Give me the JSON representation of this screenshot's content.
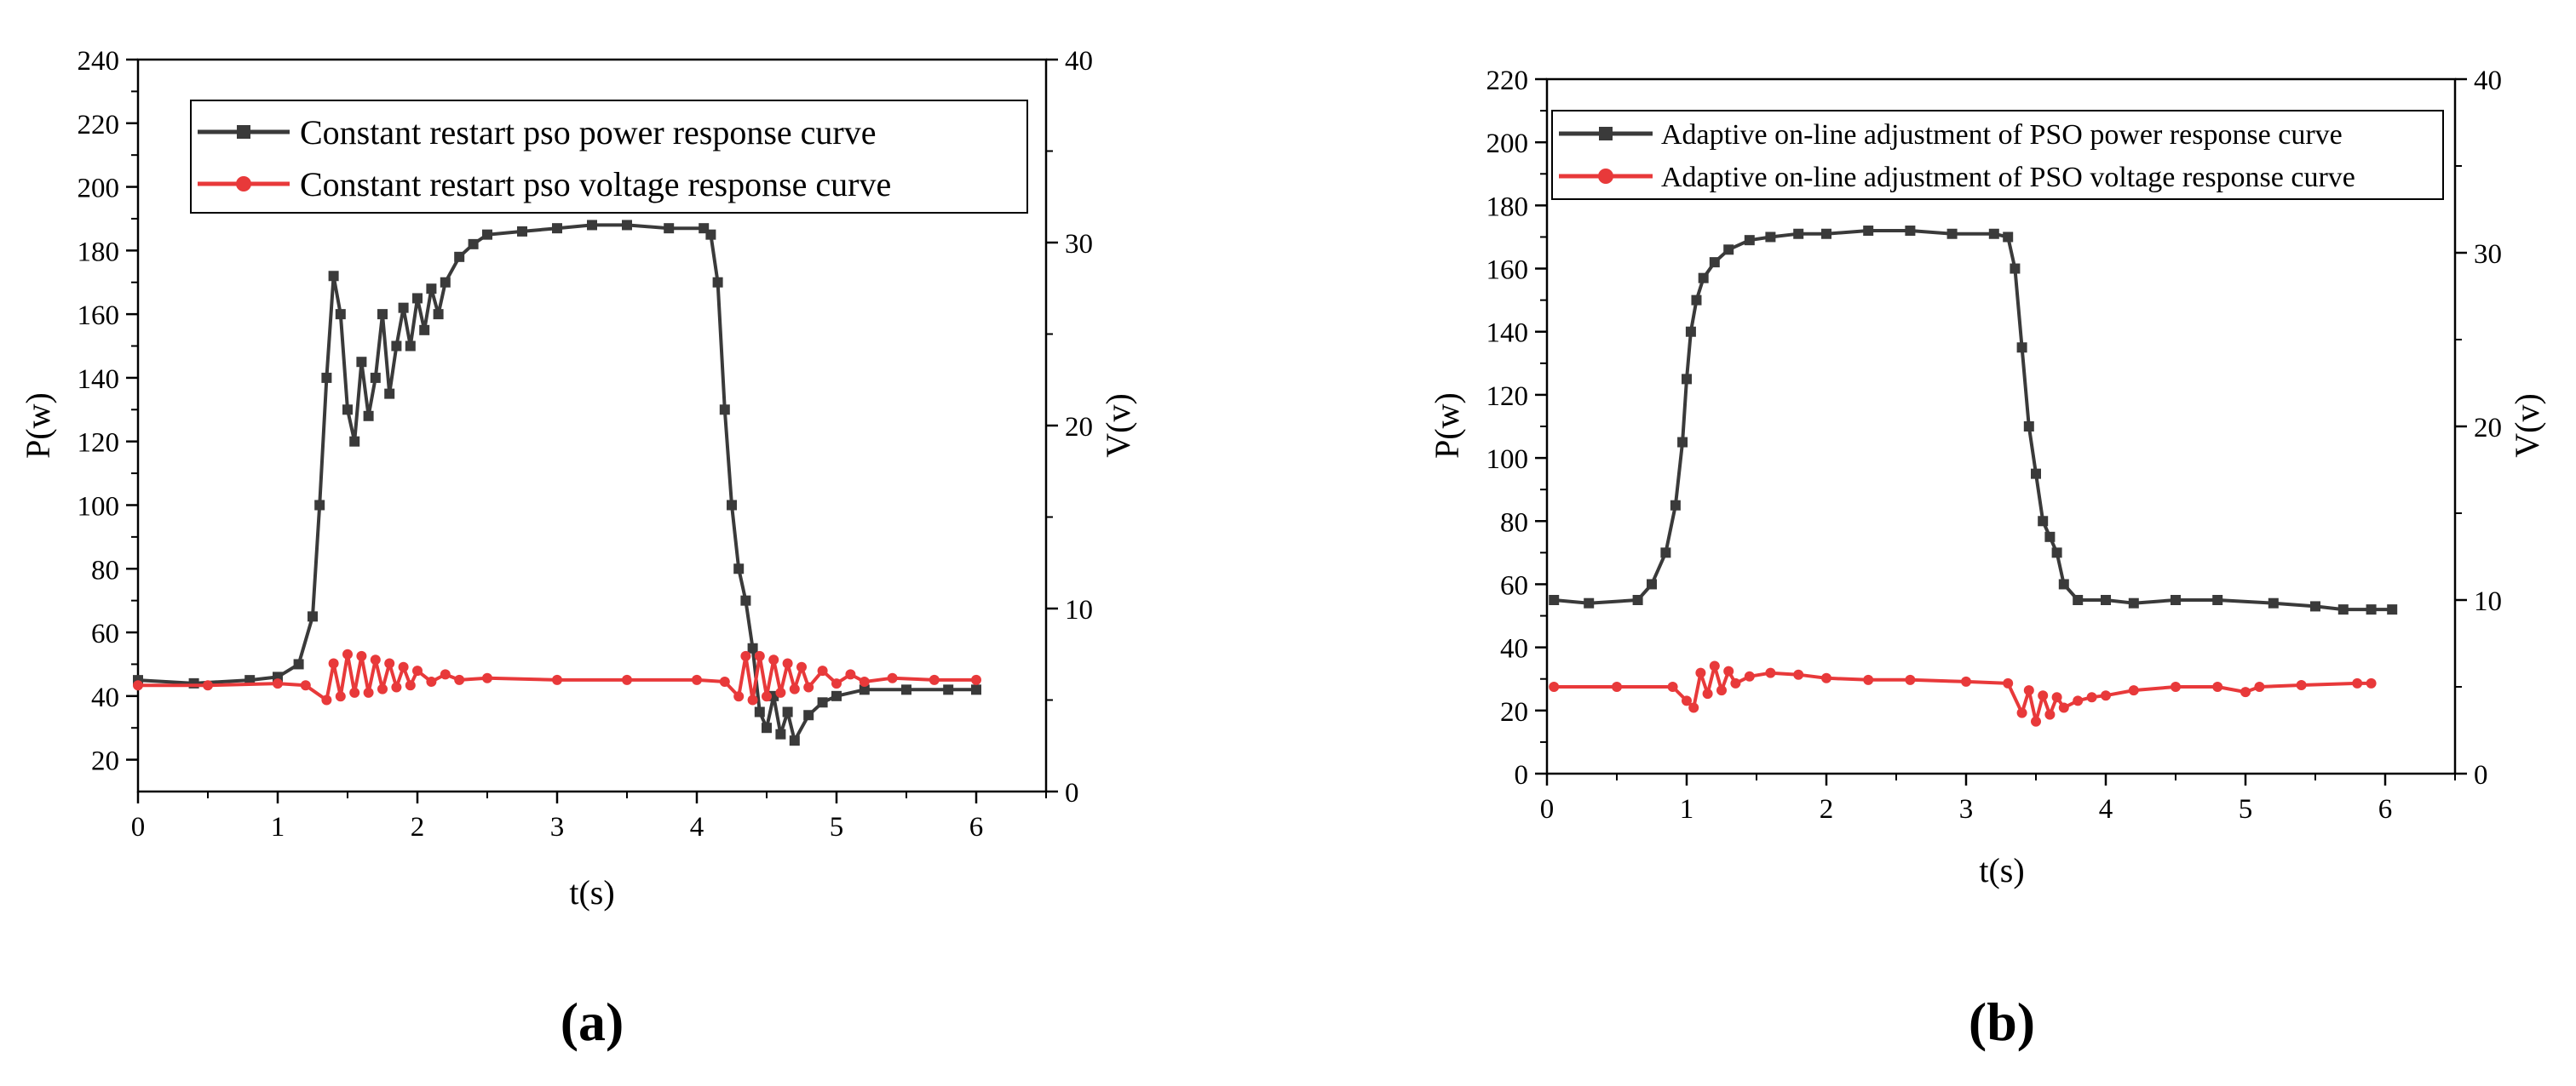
{
  "colors": {
    "power": "#3a3a3a",
    "voltage": "#e8393a"
  },
  "chart_data": [
    {
      "type": "line",
      "panel_label": "a",
      "xlabel": "t(s)",
      "ylabel": "P(w)",
      "y2label": "V(v)",
      "xlim": [
        0,
        6.5
      ],
      "ylim": [
        10,
        240
      ],
      "y2lim": [
        0,
        40
      ],
      "x_ticks": [
        "0",
        "1",
        "2",
        "3",
        "4",
        "5",
        "6"
      ],
      "y_ticks": [
        "20",
        "40",
        "60",
        "80",
        "100",
        "120",
        "140",
        "160",
        "180",
        "200",
        "220",
        "240"
      ],
      "y2_ticks": [
        "0",
        "10",
        "20",
        "30",
        "40"
      ],
      "legend": [
        "Constant restart pso power response curve",
        "Constant restart pso voltage response curve"
      ],
      "series": [
        {
          "name": "Constant restart pso power response curve",
          "axis": "left",
          "points": [
            [
              0,
              45
            ],
            [
              0.4,
              44
            ],
            [
              0.8,
              45
            ],
            [
              1.0,
              46
            ],
            [
              1.15,
              50
            ],
            [
              1.25,
              65
            ],
            [
              1.3,
              100
            ],
            [
              1.35,
              140
            ],
            [
              1.4,
              172
            ],
            [
              1.45,
              160
            ],
            [
              1.5,
              130
            ],
            [
              1.55,
              120
            ],
            [
              1.6,
              145
            ],
            [
              1.65,
              128
            ],
            [
              1.7,
              140
            ],
            [
              1.75,
              160
            ],
            [
              1.8,
              135
            ],
            [
              1.85,
              150
            ],
            [
              1.9,
              162
            ],
            [
              1.95,
              150
            ],
            [
              2.0,
              165
            ],
            [
              2.05,
              155
            ],
            [
              2.1,
              168
            ],
            [
              2.15,
              160
            ],
            [
              2.2,
              170
            ],
            [
              2.3,
              178
            ],
            [
              2.4,
              182
            ],
            [
              2.5,
              185
            ],
            [
              2.75,
              186
            ],
            [
              3.0,
              187
            ],
            [
              3.25,
              188
            ],
            [
              3.5,
              188
            ],
            [
              3.8,
              187
            ],
            [
              4.05,
              187
            ],
            [
              4.1,
              185
            ],
            [
              4.15,
              170
            ],
            [
              4.2,
              130
            ],
            [
              4.25,
              100
            ],
            [
              4.3,
              80
            ],
            [
              4.35,
              70
            ],
            [
              4.4,
              55
            ],
            [
              4.45,
              35
            ],
            [
              4.5,
              30
            ],
            [
              4.55,
              40
            ],
            [
              4.6,
              28
            ],
            [
              4.65,
              35
            ],
            [
              4.7,
              26
            ],
            [
              4.8,
              34
            ],
            [
              4.9,
              38
            ],
            [
              5.0,
              40
            ],
            [
              5.2,
              42
            ],
            [
              5.5,
              42
            ],
            [
              5.8,
              42
            ],
            [
              6.0,
              42
            ]
          ]
        },
        {
          "name": "Constant restart pso voltage response curve",
          "axis": "right",
          "points": [
            [
              0,
              5.8
            ],
            [
              0.5,
              5.8
            ],
            [
              1.0,
              5.9
            ],
            [
              1.2,
              5.8
            ],
            [
              1.35,
              5.0
            ],
            [
              1.4,
              7.0
            ],
            [
              1.45,
              5.2
            ],
            [
              1.5,
              7.5
            ],
            [
              1.55,
              5.4
            ],
            [
              1.6,
              7.4
            ],
            [
              1.65,
              5.4
            ],
            [
              1.7,
              7.2
            ],
            [
              1.75,
              5.6
            ],
            [
              1.8,
              7.0
            ],
            [
              1.85,
              5.7
            ],
            [
              1.9,
              6.8
            ],
            [
              1.95,
              5.8
            ],
            [
              2.0,
              6.6
            ],
            [
              2.1,
              6.0
            ],
            [
              2.2,
              6.4
            ],
            [
              2.3,
              6.1
            ],
            [
              2.5,
              6.2
            ],
            [
              3.0,
              6.1
            ],
            [
              3.5,
              6.1
            ],
            [
              4.0,
              6.1
            ],
            [
              4.2,
              6.0
            ],
            [
              4.3,
              5.2
            ],
            [
              4.35,
              7.4
            ],
            [
              4.4,
              5.0
            ],
            [
              4.45,
              7.4
            ],
            [
              4.5,
              5.2
            ],
            [
              4.55,
              7.2
            ],
            [
              4.6,
              5.4
            ],
            [
              4.65,
              7.0
            ],
            [
              4.7,
              5.6
            ],
            [
              4.75,
              6.8
            ],
            [
              4.8,
              5.7
            ],
            [
              4.9,
              6.6
            ],
            [
              5.0,
              5.9
            ],
            [
              5.1,
              6.4
            ],
            [
              5.2,
              6.0
            ],
            [
              5.4,
              6.2
            ],
            [
              5.7,
              6.1
            ],
            [
              6.0,
              6.1
            ]
          ]
        }
      ]
    },
    {
      "type": "line",
      "panel_label": "b",
      "xlabel": "t(s)",
      "ylabel": "P(w)",
      "y2label": "V(v)",
      "xlim": [
        0,
        6.5
      ],
      "ylim": [
        0,
        220
      ],
      "y2lim": [
        0,
        40
      ],
      "x_ticks": [
        "0",
        "1",
        "2",
        "3",
        "4",
        "5",
        "6"
      ],
      "y_ticks": [
        "0",
        "20",
        "40",
        "60",
        "80",
        "100",
        "120",
        "140",
        "160",
        "180",
        "200",
        "220"
      ],
      "y2_ticks": [
        "0",
        "10",
        "20",
        "30",
        "40"
      ],
      "legend": [
        "Adaptive on-line adjustment of PSO power response curve",
        "Adaptive on-line adjustment of PSO voltage response curve"
      ],
      "series": [
        {
          "name": "Adaptive on-line adjustment of PSO power response curve",
          "axis": "left",
          "points": [
            [
              0.05,
              55
            ],
            [
              0.3,
              54
            ],
            [
              0.65,
              55
            ],
            [
              0.75,
              60
            ],
            [
              0.85,
              70
            ],
            [
              0.92,
              85
            ],
            [
              0.97,
              105
            ],
            [
              1.0,
              125
            ],
            [
              1.03,
              140
            ],
            [
              1.07,
              150
            ],
            [
              1.12,
              157
            ],
            [
              1.2,
              162
            ],
            [
              1.3,
              166
            ],
            [
              1.45,
              169
            ],
            [
              1.6,
              170
            ],
            [
              1.8,
              171
            ],
            [
              2.0,
              171
            ],
            [
              2.3,
              172
            ],
            [
              2.6,
              172
            ],
            [
              2.9,
              171
            ],
            [
              3.2,
              171
            ],
            [
              3.3,
              170
            ],
            [
              3.35,
              160
            ],
            [
              3.4,
              135
            ],
            [
              3.45,
              110
            ],
            [
              3.5,
              95
            ],
            [
              3.55,
              80
            ],
            [
              3.6,
              75
            ],
            [
              3.65,
              70
            ],
            [
              3.7,
              60
            ],
            [
              3.8,
              55
            ],
            [
              4.0,
              55
            ],
            [
              4.2,
              54
            ],
            [
              4.5,
              55
            ],
            [
              4.8,
              55
            ],
            [
              5.2,
              54
            ],
            [
              5.5,
              53
            ],
            [
              5.7,
              52
            ],
            [
              5.9,
              52
            ],
            [
              6.05,
              52
            ]
          ]
        },
        {
          "name": "Adaptive on-line adjustment of PSO voltage response curve",
          "axis": "right",
          "points": [
            [
              0.05,
              5.0
            ],
            [
              0.5,
              5.0
            ],
            [
              0.9,
              5.0
            ],
            [
              1.0,
              4.2
            ],
            [
              1.05,
              3.8
            ],
            [
              1.1,
              5.8
            ],
            [
              1.15,
              4.6
            ],
            [
              1.2,
              6.2
            ],
            [
              1.25,
              4.8
            ],
            [
              1.3,
              5.9
            ],
            [
              1.35,
              5.2
            ],
            [
              1.45,
              5.6
            ],
            [
              1.6,
              5.8
            ],
            [
              1.8,
              5.7
            ],
            [
              2.0,
              5.5
            ],
            [
              2.3,
              5.4
            ],
            [
              2.6,
              5.4
            ],
            [
              3.0,
              5.3
            ],
            [
              3.3,
              5.2
            ],
            [
              3.4,
              3.5
            ],
            [
              3.45,
              4.8
            ],
            [
              3.5,
              3.0
            ],
            [
              3.55,
              4.5
            ],
            [
              3.6,
              3.4
            ],
            [
              3.65,
              4.4
            ],
            [
              3.7,
              3.8
            ],
            [
              3.8,
              4.2
            ],
            [
              3.9,
              4.4
            ],
            [
              4.0,
              4.5
            ],
            [
              4.2,
              4.8
            ],
            [
              4.5,
              5.0
            ],
            [
              4.8,
              5.0
            ],
            [
              5.0,
              4.7
            ],
            [
              5.1,
              5.0
            ],
            [
              5.4,
              5.1
            ],
            [
              5.8,
              5.2
            ],
            [
              5.9,
              5.2
            ]
          ]
        }
      ]
    }
  ]
}
